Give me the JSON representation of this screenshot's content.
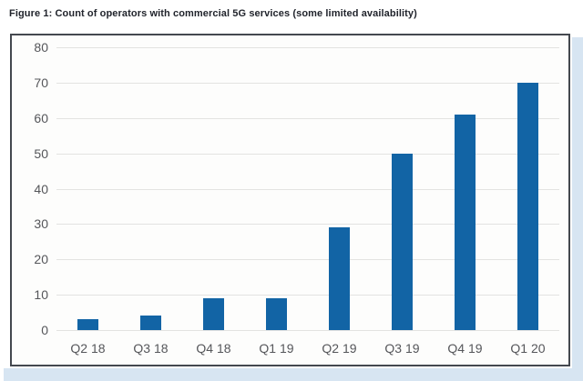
{
  "figure": {
    "title": "Figure 1: Count of operators with commercial 5G services (some limited availability)"
  },
  "chart_data": {
    "type": "bar",
    "title": "Count of operators with commercial 5G services (some limited availability)",
    "categories": [
      "Q2 18",
      "Q3 18",
      "Q4 18",
      "Q1 19",
      "Q2 19",
      "Q3 19",
      "Q4 19",
      "Q1 20"
    ],
    "values": [
      3,
      4,
      9,
      9,
      29,
      50,
      61,
      70
    ],
    "xlabel": "",
    "ylabel": "",
    "ylim": [
      0,
      80
    ],
    "yticks": [
      0,
      10,
      20,
      30,
      40,
      50,
      60,
      70,
      80
    ],
    "grid": true,
    "legend": false,
    "bar_color": "#1264a5"
  },
  "colors": {
    "bar": "#1264a5",
    "frame_border": "#44484f",
    "shadow": "#d7e5f2",
    "gridline": "#e3e3e1",
    "axis_text": "#55565a",
    "title_text": "#21242c",
    "plot_bg": "#fdfdfc",
    "page_bg": "#ffffff"
  }
}
